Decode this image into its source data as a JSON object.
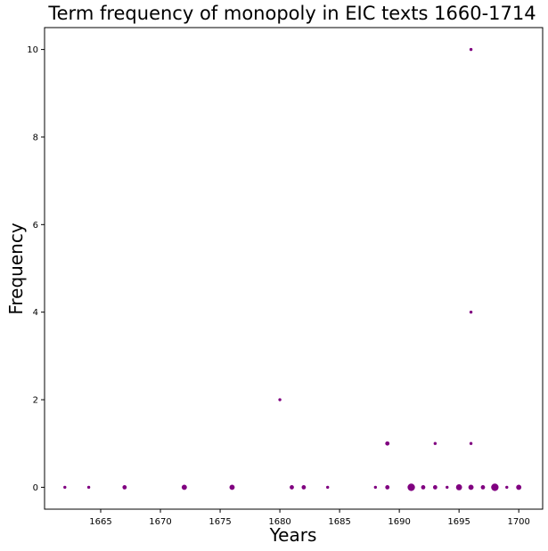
{
  "chart_data": {
    "type": "scatter",
    "title": "Term frequency of monopoly in EIC texts 1660-1714",
    "xlabel": "Years",
    "ylabel": "Frequency",
    "xlim": [
      1660.3,
      1702.0
    ],
    "ylim": [
      -0.5,
      10.5
    ],
    "xticks": [
      1665,
      1670,
      1675,
      1680,
      1685,
      1690,
      1695,
      1700
    ],
    "yticks": [
      0,
      2,
      4,
      6,
      8,
      10
    ],
    "grid": false,
    "color": "#800080",
    "points": [
      {
        "x": 1662,
        "y": 0,
        "count": 1
      },
      {
        "x": 1664,
        "y": 0,
        "count": 1
      },
      {
        "x": 1667,
        "y": 0,
        "count": 2
      },
      {
        "x": 1672,
        "y": 0,
        "count": 3
      },
      {
        "x": 1676,
        "y": 0,
        "count": 3
      },
      {
        "x": 1680,
        "y": 2,
        "count": 1
      },
      {
        "x": 1681,
        "y": 0,
        "count": 2
      },
      {
        "x": 1682,
        "y": 0,
        "count": 2
      },
      {
        "x": 1684,
        "y": 0,
        "count": 1
      },
      {
        "x": 1688,
        "y": 0,
        "count": 1
      },
      {
        "x": 1689,
        "y": 0,
        "count": 2
      },
      {
        "x": 1689,
        "y": 1,
        "count": 2
      },
      {
        "x": 1691,
        "y": 0,
        "count": 6
      },
      {
        "x": 1692,
        "y": 0,
        "count": 2
      },
      {
        "x": 1693,
        "y": 0,
        "count": 2
      },
      {
        "x": 1693,
        "y": 1,
        "count": 1
      },
      {
        "x": 1694,
        "y": 0,
        "count": 1
      },
      {
        "x": 1695,
        "y": 0,
        "count": 4
      },
      {
        "x": 1696,
        "y": 0,
        "count": 3
      },
      {
        "x": 1696,
        "y": 1,
        "count": 1
      },
      {
        "x": 1696,
        "y": 4,
        "count": 1
      },
      {
        "x": 1696,
        "y": 10,
        "count": 1
      },
      {
        "x": 1697,
        "y": 0,
        "count": 2
      },
      {
        "x": 1698,
        "y": 0,
        "count": 6
      },
      {
        "x": 1699,
        "y": 0,
        "count": 1
      },
      {
        "x": 1700,
        "y": 0,
        "count": 3
      }
    ]
  }
}
